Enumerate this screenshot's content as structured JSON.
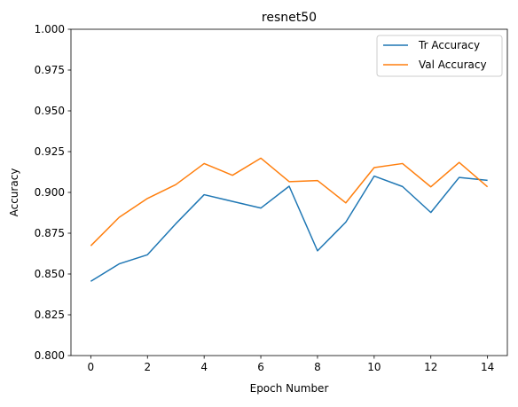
{
  "chart_data": {
    "type": "line",
    "title": "resnet50",
    "xlabel": "Epoch Number",
    "ylabel": "Accuracy",
    "xlim": [
      -0.7,
      14.7
    ],
    "ylim": [
      0.8,
      1.0
    ],
    "xticks": [
      0,
      2,
      4,
      6,
      8,
      10,
      12,
      14
    ],
    "xtick_labels": [
      "0",
      "2",
      "4",
      "6",
      "8",
      "10",
      "12",
      "14"
    ],
    "yticks": [
      0.8,
      0.825,
      0.85,
      0.875,
      0.9,
      0.925,
      0.95,
      0.975,
      1.0
    ],
    "ytick_labels": [
      "0.800",
      "0.825",
      "0.850",
      "0.875",
      "0.900",
      "0.925",
      "0.950",
      "0.975",
      "1.000"
    ],
    "grid": false,
    "legend_position": "top-right",
    "x": [
      0,
      1,
      2,
      3,
      4,
      5,
      6,
      7,
      8,
      9,
      10,
      11,
      12,
      13,
      14
    ],
    "series": [
      {
        "name": "Tr Accuracy",
        "color": "#1f77b4",
        "values": [
          0.8455,
          0.8562,
          0.8618,
          0.8808,
          0.8986,
          0.8945,
          0.8904,
          0.9038,
          0.8642,
          0.8818,
          0.91,
          0.9036,
          0.8877,
          0.9092,
          0.9074
        ]
      },
      {
        "name": "Val Accuracy",
        "color": "#ff7f0e",
        "values": [
          0.8673,
          0.8847,
          0.8963,
          0.9048,
          0.9177,
          0.9105,
          0.921,
          0.9066,
          0.9073,
          0.8936,
          0.9152,
          0.9177,
          0.9034,
          0.9184,
          0.9034
        ]
      }
    ]
  }
}
